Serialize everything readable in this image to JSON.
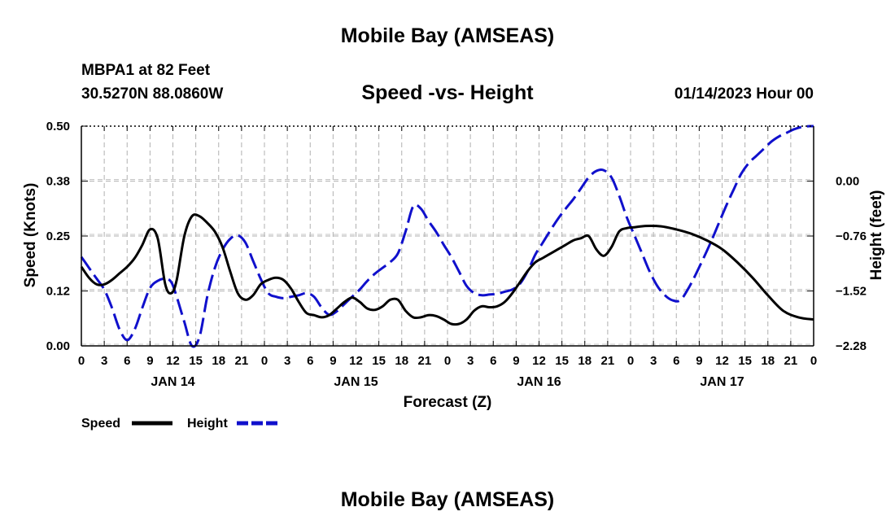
{
  "header": {
    "title": "Mobile Bay (AMSEAS)",
    "station": "MBPA1 at 82 Feet",
    "coords": "30.5270N  88.0860W",
    "subtitle": "Speed -vs- Height",
    "datetime": "01/14/2023 Hour 00",
    "footer_title": "Mobile Bay (AMSEAS)"
  },
  "chart_data": {
    "type": "line",
    "title": "Speed -vs- Height",
    "xlabel": "Forecast (Z)",
    "ylabel": "Speed (Knots)",
    "y2label": "Height (feet)",
    "x_range_hours": [
      0,
      96
    ],
    "x_tick_step_hours": 3,
    "x_tick_labels": [
      "0",
      "3",
      "6",
      "9",
      "12",
      "15",
      "18",
      "21",
      "0",
      "3",
      "6",
      "9",
      "12",
      "15",
      "18",
      "21",
      "0",
      "3",
      "6",
      "9",
      "12",
      "15",
      "18",
      "21",
      "0",
      "3",
      "6",
      "9",
      "12",
      "15",
      "18",
      "21",
      "0"
    ],
    "date_labels": [
      {
        "hour": 12,
        "label": "JAN 14"
      },
      {
        "hour": 36,
        "label": "JAN 15"
      },
      {
        "hour": 60,
        "label": "JAN 16"
      },
      {
        "hour": 84,
        "label": "JAN 17"
      }
    ],
    "ylim": [
      0,
      0.5
    ],
    "y_ticks": [
      "0.00",
      "0.12",
      "0.25",
      "0.38",
      "0.50"
    ],
    "y2lim": [
      -2.28,
      0.76
    ],
    "y2_ticks": [
      "-2.28",
      "-1.52",
      "-0.76",
      "0.00"
    ],
    "legend": {
      "position": "bottom-left",
      "speed_label": "Speed",
      "height_label": "Height"
    },
    "grid": true,
    "series": [
      {
        "name": "Speed",
        "axis": "left",
        "color": "#000000",
        "dash": "solid",
        "points": [
          [
            0,
            0.18
          ],
          [
            1,
            0.155
          ],
          [
            2,
            0.14
          ],
          [
            3,
            0.14
          ],
          [
            4,
            0.15
          ],
          [
            5,
            0.165
          ],
          [
            6,
            0.18
          ],
          [
            7,
            0.2
          ],
          [
            8,
            0.23
          ],
          [
            9,
            0.265
          ],
          [
            10,
            0.245
          ],
          [
            11,
            0.14
          ],
          [
            11.8,
            0.12
          ],
          [
            12.5,
            0.15
          ],
          [
            13.5,
            0.25
          ],
          [
            14.5,
            0.295
          ],
          [
            15.5,
            0.295
          ],
          [
            16.5,
            0.28
          ],
          [
            17.5,
            0.26
          ],
          [
            18.5,
            0.225
          ],
          [
            19.5,
            0.17
          ],
          [
            20.5,
            0.12
          ],
          [
            21.5,
            0.105
          ],
          [
            22.5,
            0.115
          ],
          [
            23.5,
            0.14
          ],
          [
            24.5,
            0.15
          ],
          [
            25.5,
            0.155
          ],
          [
            26.5,
            0.15
          ],
          [
            27.5,
            0.13
          ],
          [
            28.5,
            0.1
          ],
          [
            29.5,
            0.075
          ],
          [
            30.5,
            0.07
          ],
          [
            31.5,
            0.065
          ],
          [
            32.5,
            0.07
          ],
          [
            33.5,
            0.085
          ],
          [
            34.5,
            0.1
          ],
          [
            35.5,
            0.11
          ],
          [
            36.5,
            0.1
          ],
          [
            37.5,
            0.085
          ],
          [
            38.5,
            0.082
          ],
          [
            39.5,
            0.09
          ],
          [
            40.5,
            0.105
          ],
          [
            41.5,
            0.105
          ],
          [
            42.5,
            0.08
          ],
          [
            43.5,
            0.065
          ],
          [
            44.5,
            0.065
          ],
          [
            45.5,
            0.07
          ],
          [
            46.5,
            0.068
          ],
          [
            47.5,
            0.06
          ],
          [
            48.5,
            0.05
          ],
          [
            49.5,
            0.05
          ],
          [
            50.5,
            0.06
          ],
          [
            51.5,
            0.08
          ],
          [
            52.5,
            0.09
          ],
          [
            53.5,
            0.088
          ],
          [
            54.5,
            0.09
          ],
          [
            55.5,
            0.1
          ],
          [
            56.5,
            0.12
          ],
          [
            57.5,
            0.145
          ],
          [
            58.5,
            0.17
          ],
          [
            59.5,
            0.19
          ],
          [
            60.5,
            0.2
          ],
          [
            61.5,
            0.21
          ],
          [
            62.5,
            0.22
          ],
          [
            63.5,
            0.23
          ],
          [
            64.5,
            0.24
          ],
          [
            65.5,
            0.245
          ],
          [
            66.5,
            0.25
          ],
          [
            67.5,
            0.22
          ],
          [
            68.5,
            0.205
          ],
          [
            69.5,
            0.225
          ],
          [
            70.5,
            0.26
          ],
          [
            71.5,
            0.268
          ],
          [
            72.5,
            0.27
          ],
          [
            74,
            0.273
          ],
          [
            76,
            0.272
          ],
          [
            78,
            0.265
          ],
          [
            80,
            0.255
          ],
          [
            82,
            0.24
          ],
          [
            84,
            0.22
          ],
          [
            86,
            0.19
          ],
          [
            88,
            0.155
          ],
          [
            90,
            0.115
          ],
          [
            92,
            0.08
          ],
          [
            94,
            0.065
          ],
          [
            96,
            0.06
          ]
        ]
      },
      {
        "name": "Height",
        "axis": "right",
        "color": "#1010cc",
        "dash": "dashed",
        "points": [
          [
            0,
            -1.05
          ],
          [
            1,
            -1.2
          ],
          [
            2,
            -1.35
          ],
          [
            3,
            -1.5
          ],
          [
            4,
            -1.75
          ],
          [
            5,
            -2.05
          ],
          [
            6,
            -2.2
          ],
          [
            7,
            -2.05
          ],
          [
            8,
            -1.75
          ],
          [
            9,
            -1.48
          ],
          [
            10,
            -1.38
          ],
          [
            11,
            -1.35
          ],
          [
            11.8,
            -1.4
          ],
          [
            12.5,
            -1.6
          ],
          [
            13.5,
            -1.95
          ],
          [
            14.5,
            -2.28
          ],
          [
            15.5,
            -2.15
          ],
          [
            16.5,
            -1.6
          ],
          [
            17.5,
            -1.2
          ],
          [
            18.5,
            -0.95
          ],
          [
            19.5,
            -0.8
          ],
          [
            20.5,
            -0.75
          ],
          [
            21.5,
            -0.85
          ],
          [
            22.5,
            -1.1
          ],
          [
            23.5,
            -1.35
          ],
          [
            24.5,
            -1.55
          ],
          [
            25.5,
            -1.6
          ],
          [
            26.5,
            -1.62
          ],
          [
            27.5,
            -1.6
          ],
          [
            28.5,
            -1.58
          ],
          [
            29.5,
            -1.55
          ],
          [
            30.5,
            -1.6
          ],
          [
            31.5,
            -1.75
          ],
          [
            32.5,
            -1.85
          ],
          [
            33.5,
            -1.8
          ],
          [
            34.5,
            -1.7
          ],
          [
            35.5,
            -1.6
          ],
          [
            36.5,
            -1.5
          ],
          [
            37.5,
            -1.38
          ],
          [
            38.5,
            -1.28
          ],
          [
            39.5,
            -1.2
          ],
          [
            40.5,
            -1.12
          ],
          [
            41.5,
            -1.0
          ],
          [
            42.5,
            -0.7
          ],
          [
            43.5,
            -0.35
          ],
          [
            44.5,
            -0.38
          ],
          [
            45.5,
            -0.55
          ],
          [
            46.5,
            -0.7
          ],
          [
            47.5,
            -0.88
          ],
          [
            48.5,
            -1.05
          ],
          [
            49.5,
            -1.25
          ],
          [
            50.5,
            -1.45
          ],
          [
            51.5,
            -1.55
          ],
          [
            52.5,
            -1.58
          ],
          [
            53.5,
            -1.57
          ],
          [
            54.5,
            -1.56
          ],
          [
            55.5,
            -1.53
          ],
          [
            56.5,
            -1.5
          ],
          [
            57.5,
            -1.42
          ],
          [
            58.5,
            -1.25
          ],
          [
            59.5,
            -1.02
          ],
          [
            60.5,
            -0.85
          ],
          [
            61.5,
            -0.68
          ],
          [
            62.5,
            -0.52
          ],
          [
            63.5,
            -0.38
          ],
          [
            64.5,
            -0.25
          ],
          [
            65.5,
            -0.1
          ],
          [
            66.5,
            0.05
          ],
          [
            67.5,
            0.14
          ],
          [
            68.5,
            0.15
          ],
          [
            69.5,
            0.05
          ],
          [
            70.5,
            -0.2
          ],
          [
            71.5,
            -0.5
          ],
          [
            72.5,
            -0.75
          ],
          [
            73.5,
            -1.0
          ],
          [
            74.5,
            -1.25
          ],
          [
            75.5,
            -1.45
          ],
          [
            76.5,
            -1.58
          ],
          [
            77.5,
            -1.65
          ],
          [
            78.5,
            -1.65
          ],
          [
            79.5,
            -1.5
          ],
          [
            80.5,
            -1.3
          ],
          [
            81.5,
            -1.08
          ],
          [
            82.5,
            -0.85
          ],
          [
            83.5,
            -0.6
          ],
          [
            84.5,
            -0.35
          ],
          [
            85.5,
            -0.12
          ],
          [
            86.5,
            0.1
          ],
          [
            87.5,
            0.25
          ],
          [
            88.5,
            0.35
          ],
          [
            89.5,
            0.45
          ],
          [
            90.5,
            0.55
          ],
          [
            91.5,
            0.62
          ],
          [
            92.5,
            0.67
          ],
          [
            93.5,
            0.72
          ],
          [
            94.5,
            0.75
          ],
          [
            95.5,
            0.76
          ],
          [
            96,
            0.76
          ]
        ]
      }
    ]
  }
}
